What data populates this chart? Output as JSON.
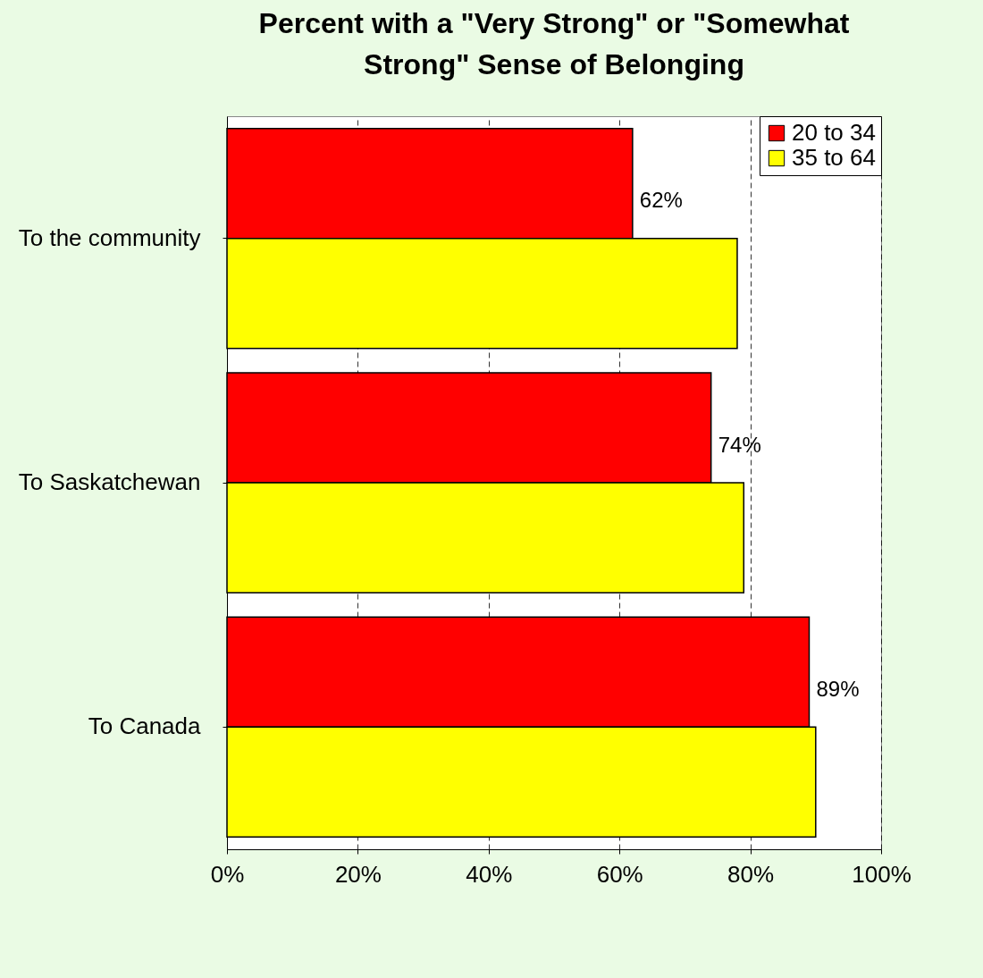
{
  "chart_data": {
    "type": "bar",
    "orientation": "horizontal",
    "title": "Percent with a \"Very Strong\" or \"Somewhat Strong\" Sense of Belonging",
    "categories": [
      "To the community",
      "To Saskatchewan",
      "To Canada"
    ],
    "series": [
      {
        "name": "20 to 34",
        "color": "#ff0000",
        "values": [
          62,
          74,
          89
        ],
        "value_labels": [
          "62%",
          "74%",
          "89%"
        ]
      },
      {
        "name": "35 to 64",
        "color": "#ffff00",
        "values": [
          78,
          79,
          90
        ]
      }
    ],
    "xlim": [
      0,
      100
    ],
    "xticks": [
      {
        "value": 0,
        "label": "0%"
      },
      {
        "value": 20,
        "label": "20%"
      },
      {
        "value": 40,
        "label": "40%"
      },
      {
        "value": 60,
        "label": "60%"
      },
      {
        "value": 80,
        "label": "80%"
      },
      {
        "value": 100,
        "label": "100%"
      }
    ],
    "grid": "x",
    "legend": "top right"
  }
}
